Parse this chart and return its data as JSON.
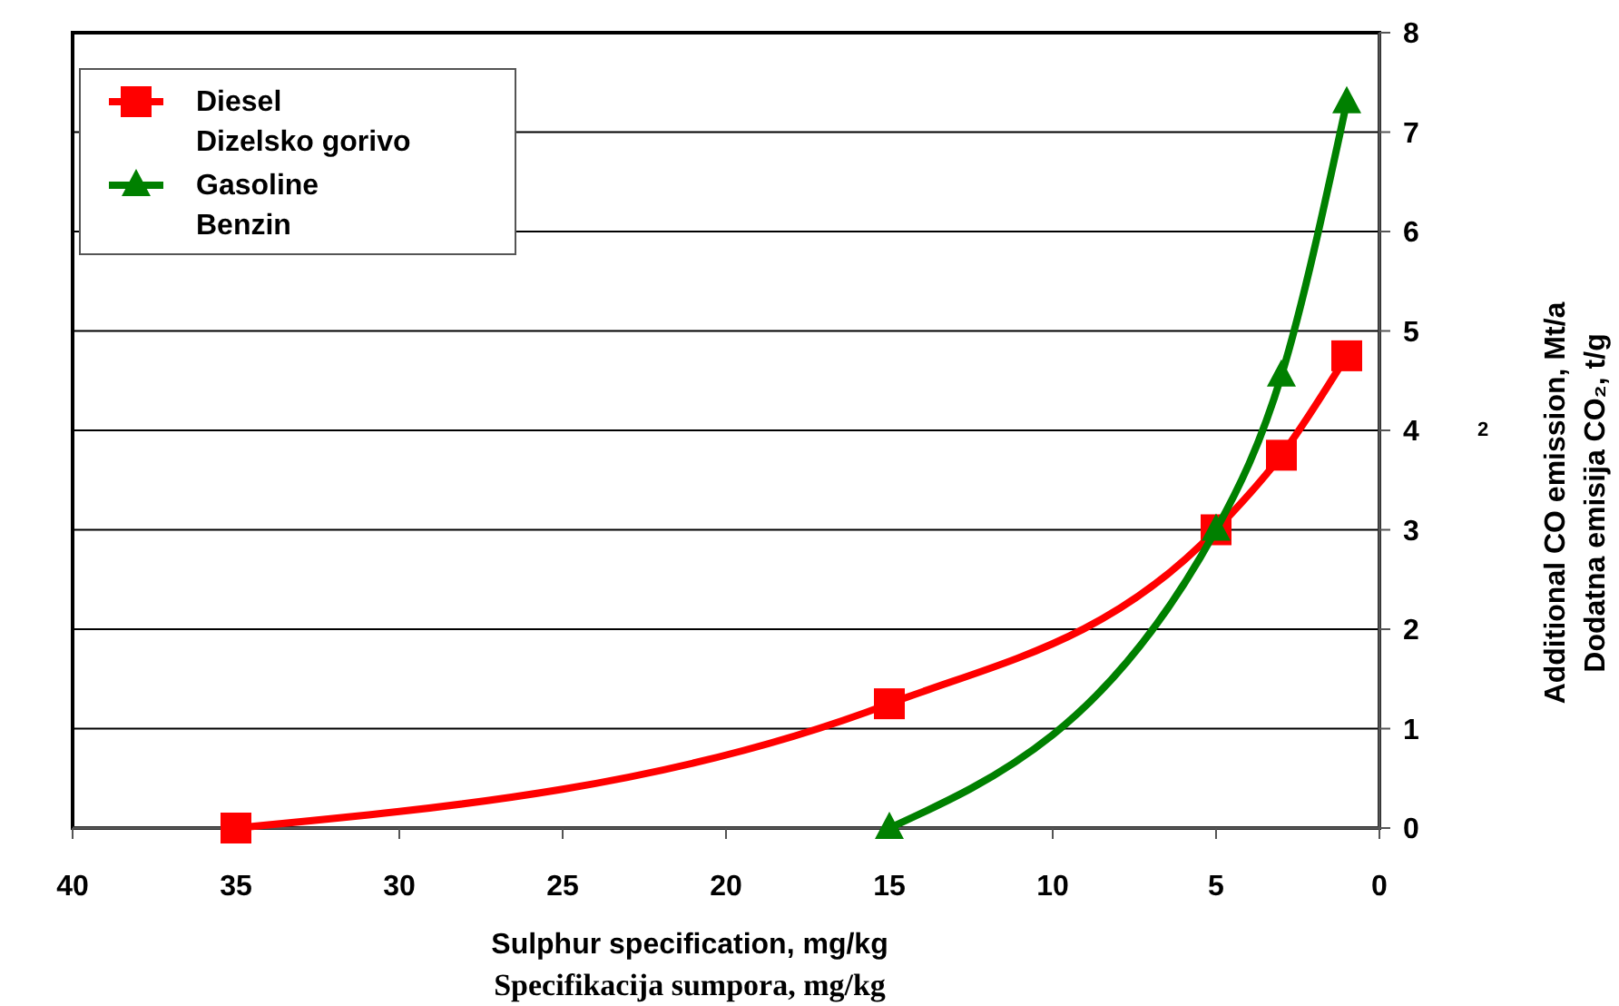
{
  "chart_data": {
    "type": "line",
    "xlabel": "Sulphur specification, mg/kg\nSpecifikacija sumpora, mg/kg",
    "ylabel": "Additional CO emission, Mt/a\nDodatna emisija CO₂, t/g",
    "annotations": [
      "2"
    ],
    "xlim": [
      40,
      0
    ],
    "xticks": [
      40,
      35,
      30,
      25,
      20,
      15,
      10,
      5,
      0
    ],
    "ylim": [
      0,
      8
    ],
    "yticks": [
      0,
      1,
      2,
      3,
      4,
      5,
      6,
      7,
      8
    ],
    "grid": "y",
    "legend": "top left",
    "series": [
      {
        "name": "Diesel\nDizelsko gorivo",
        "color": "#ff0000",
        "marker": "square",
        "x": [
          35,
          15,
          5,
          3,
          1
        ],
        "values": [
          0,
          1.25,
          3,
          3.75,
          4.75
        ]
      },
      {
        "name": "Gasoline\nBenzin",
        "color": "#008000",
        "marker": "triangle",
        "x": [
          15,
          5,
          3,
          1
        ],
        "values": [
          0,
          3,
          4.55,
          7.3
        ]
      }
    ]
  }
}
